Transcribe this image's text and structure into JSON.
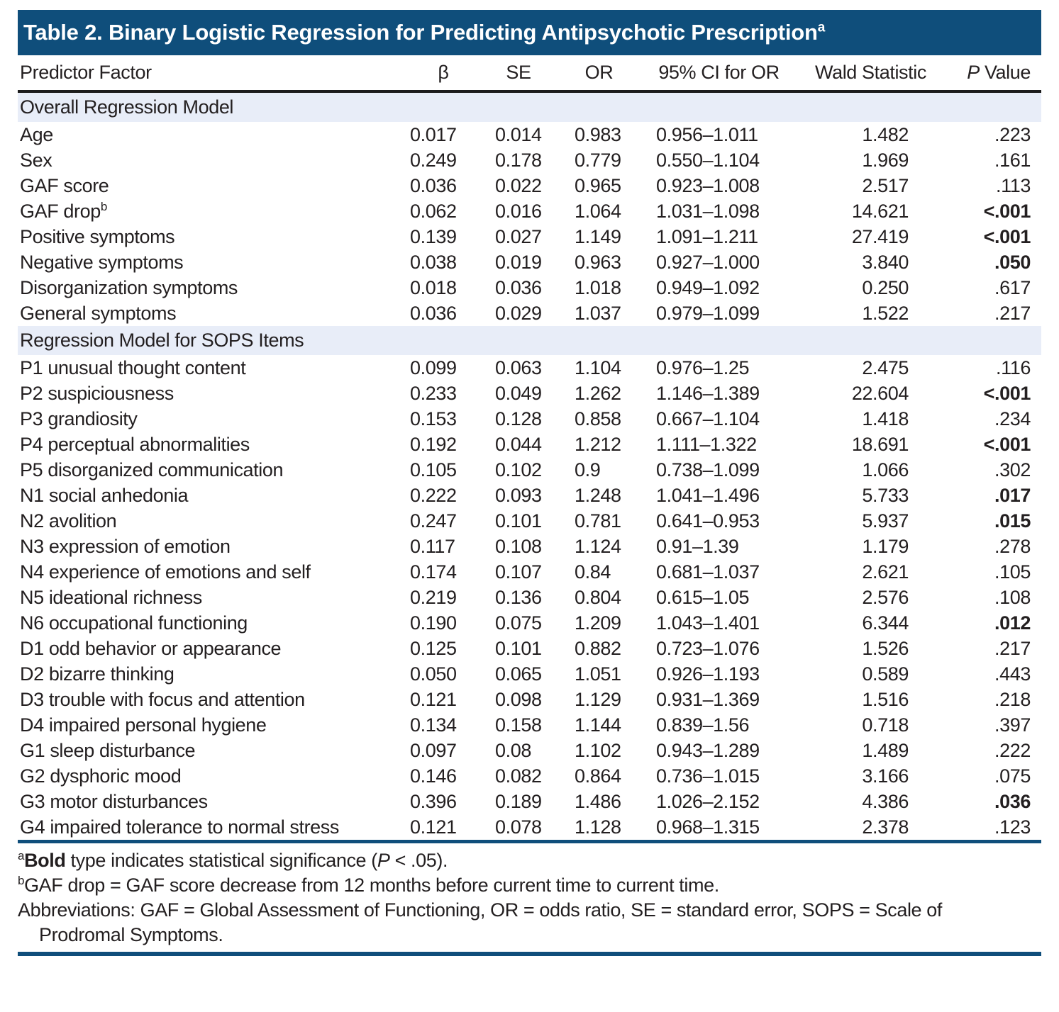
{
  "title": {
    "text": "Table 2. Binary Logistic Regression for Predicting Antipsychotic Prescription",
    "superscript": "a"
  },
  "columns": {
    "predictor": "Predictor Factor",
    "beta": "β",
    "se": "SE",
    "or": "OR",
    "ci": "95% CI for OR",
    "wald": "Wald Statistic",
    "p_italic": "P",
    "p_rest": " Value"
  },
  "sections": [
    {
      "header": "Overall Regression Model",
      "rows": [
        {
          "predictor": "Age",
          "predictor_sup": "",
          "beta": "0.017",
          "se": "0.014",
          "or": "0.983",
          "ci": "0.956–1.011",
          "wald": "1.482",
          "p": ".223",
          "significant": false
        },
        {
          "predictor": "Sex",
          "predictor_sup": "",
          "beta": "0.249",
          "se": "0.178",
          "or": "0.779",
          "ci": "0.550–1.104",
          "wald": "1.969",
          "p": ".161",
          "significant": false
        },
        {
          "predictor": "GAF score",
          "predictor_sup": "",
          "beta": "0.036",
          "se": "0.022",
          "or": "0.965",
          "ci": "0.923–1.008",
          "wald": "2.517",
          "p": ".113",
          "significant": false
        },
        {
          "predictor": "GAF drop",
          "predictor_sup": "b",
          "beta": "0.062",
          "se": "0.016",
          "or": "1.064",
          "ci": "1.031–1.098",
          "wald": "14.621",
          "p": "<.001",
          "significant": true
        },
        {
          "predictor": "Positive symptoms",
          "predictor_sup": "",
          "beta": "0.139",
          "se": "0.027",
          "or": "1.149",
          "ci": "1.091–1.211",
          "wald": "27.419",
          "p": "<.001",
          "significant": true
        },
        {
          "predictor": "Negative symptoms",
          "predictor_sup": "",
          "beta": "0.038",
          "se": "0.019",
          "or": "0.963",
          "ci": "0.927–1.000",
          "wald": "3.840",
          "p": ".050",
          "significant": true
        },
        {
          "predictor": "Disorganization symptoms",
          "predictor_sup": "",
          "beta": "0.018",
          "se": "0.036",
          "or": "1.018",
          "ci": "0.949–1.092",
          "wald": "0.250",
          "p": ".617",
          "significant": false
        },
        {
          "predictor": "General symptoms",
          "predictor_sup": "",
          "beta": "0.036",
          "se": "0.029",
          "or": "1.037",
          "ci": "0.979–1.099",
          "wald": "1.522",
          "p": ".217",
          "significant": false
        }
      ]
    },
    {
      "header": "Regression Model for SOPS Items",
      "rows": [
        {
          "predictor": "P1 unusual thought content",
          "predictor_sup": "",
          "beta": "0.099",
          "se": "0.063",
          "or": "1.104",
          "ci": "0.976–1.25",
          "wald": "2.475",
          "p": ".116",
          "significant": false
        },
        {
          "predictor": "P2 suspiciousness",
          "predictor_sup": "",
          "beta": "0.233",
          "se": "0.049",
          "or": "1.262",
          "ci": "1.146–1.389",
          "wald": "22.604",
          "p": "<.001",
          "significant": true
        },
        {
          "predictor": "P3 grandiosity",
          "predictor_sup": "",
          "beta": "0.153",
          "se": "0.128",
          "or": "0.858",
          "ci": "0.667–1.104",
          "wald": "1.418",
          "p": ".234",
          "significant": false
        },
        {
          "predictor": "P4 perceptual abnormalities",
          "predictor_sup": "",
          "beta": "0.192",
          "se": "0.044",
          "or": "1.212",
          "ci": "1.111–1.322",
          "wald": "18.691",
          "p": "<.001",
          "significant": true
        },
        {
          "predictor": "P5 disorganized communication",
          "predictor_sup": "",
          "beta": "0.105",
          "se": "0.102",
          "or": "0.9",
          "ci": "0.738–1.099",
          "wald": "1.066",
          "p": ".302",
          "significant": false
        },
        {
          "predictor": "N1 social anhedonia",
          "predictor_sup": "",
          "beta": "0.222",
          "se": "0.093",
          "or": "1.248",
          "ci": "1.041–1.496",
          "wald": "5.733",
          "p": ".017",
          "significant": true
        },
        {
          "predictor": "N2 avolition",
          "predictor_sup": "",
          "beta": "0.247",
          "se": "0.101",
          "or": "0.781",
          "ci": "0.641–0.953",
          "wald": "5.937",
          "p": ".015",
          "significant": true
        },
        {
          "predictor": "N3 expression of emotion",
          "predictor_sup": "",
          "beta": "0.117",
          "se": "0.108",
          "or": "1.124",
          "ci": "0.91–1.39",
          "wald": "1.179",
          "p": ".278",
          "significant": false
        },
        {
          "predictor": "N4 experience of emotions and self",
          "predictor_sup": "",
          "beta": "0.174",
          "se": "0.107",
          "or": "0.84",
          "ci": "0.681–1.037",
          "wald": "2.621",
          "p": ".105",
          "significant": false
        },
        {
          "predictor": "N5 ideational richness",
          "predictor_sup": "",
          "beta": "0.219",
          "se": "0.136",
          "or": "0.804",
          "ci": "0.615–1.05",
          "wald": "2.576",
          "p": ".108",
          "significant": false
        },
        {
          "predictor": "N6 occupational functioning",
          "predictor_sup": "",
          "beta": "0.190",
          "se": "0.075",
          "or": "1.209",
          "ci": "1.043–1.401",
          "wald": "6.344",
          "p": ".012",
          "significant": true
        },
        {
          "predictor": "D1 odd behavior or appearance",
          "predictor_sup": "",
          "beta": "0.125",
          "se": "0.101",
          "or": "0.882",
          "ci": "0.723–1.076",
          "wald": "1.526",
          "p": ".217",
          "significant": false
        },
        {
          "predictor": "D2 bizarre thinking",
          "predictor_sup": "",
          "beta": "0.050",
          "se": "0.065",
          "or": "1.051",
          "ci": "0.926–1.193",
          "wald": "0.589",
          "p": ".443",
          "significant": false
        },
        {
          "predictor": "D3 trouble with focus and attention",
          "predictor_sup": "",
          "beta": "0.121",
          "se": "0.098",
          "or": "1.129",
          "ci": "0.931–1.369",
          "wald": "1.516",
          "p": ".218",
          "significant": false
        },
        {
          "predictor": "D4 impaired personal hygiene",
          "predictor_sup": "",
          "beta": "0.134",
          "se": "0.158",
          "or": "1.144",
          "ci": "0.839–1.56",
          "wald": "0.718",
          "p": ".397",
          "significant": false
        },
        {
          "predictor": "G1 sleep disturbance",
          "predictor_sup": "",
          "beta": "0.097",
          "se": "0.08",
          "or": "1.102",
          "ci": "0.943–1.289",
          "wald": "1.489",
          "p": ".222",
          "significant": false
        },
        {
          "predictor": "G2 dysphoric mood",
          "predictor_sup": "",
          "beta": "0.146",
          "se": "0.082",
          "or": "0.864",
          "ci": "0.736–1.015",
          "wald": "3.166",
          "p": ".075",
          "significant": false
        },
        {
          "predictor": "G3 motor disturbances",
          "predictor_sup": "",
          "beta": "0.396",
          "se": "0.189",
          "or": "1.486",
          "ci": "1.026–2.152",
          "wald": "4.386",
          "p": ".036",
          "significant": true
        },
        {
          "predictor": "G4 impaired tolerance to normal stress",
          "predictor_sup": "",
          "beta": "0.121",
          "se": "0.078",
          "or": "1.128",
          "ci": "0.968–1.315",
          "wald": "2.378",
          "p": ".123",
          "significant": false
        }
      ]
    }
  ],
  "footnotes": {
    "a": {
      "marker": "a",
      "bold_text": "Bold",
      "text_pre": " type indicates statistical significance (",
      "p_italic": "P",
      "text_post": " < .05)."
    },
    "b": {
      "marker": "b",
      "text": "GAF drop = GAF score decrease from 12 months before current time to current time."
    },
    "abbreviations": "Abbreviations: GAF = Global Assessment of Functioning, OR = odds ratio, SE = standard error, SOPS = Scale of Prodromal Symptoms."
  },
  "colors": {
    "header_bg": "#0f4e7b",
    "band_bg": "#e8edf8",
    "text": "#231f20",
    "rule_dark": "#1c1c1c",
    "title_text": "#ffffff"
  }
}
